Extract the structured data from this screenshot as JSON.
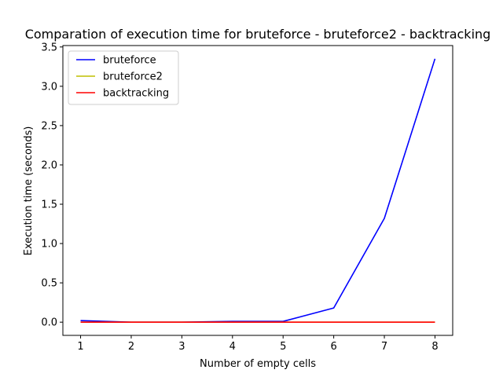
{
  "chart_data": {
    "type": "line",
    "title": "Comparation of execution time for bruteforce - bruteforce2 - backtracking",
    "xlabel": "Number of empty cells",
    "ylabel": "Execution time (seconds)",
    "x": [
      1,
      2,
      3,
      4,
      5,
      6,
      7,
      8
    ],
    "xticks": [
      "1",
      "2",
      "3",
      "4",
      "5",
      "6",
      "7",
      "8"
    ],
    "yticks": [
      "0.0",
      "0.5",
      "1.0",
      "1.5",
      "2.0",
      "2.5",
      "3.0",
      "3.5"
    ],
    "xlim": [
      0.65,
      8.35
    ],
    "ylim": [
      -0.168,
      3.518
    ],
    "grid": false,
    "legend_position": "top-left",
    "series": [
      {
        "name": "bruteforce",
        "color": "#0000ff",
        "values": [
          0.02,
          0.0,
          0.0,
          0.01,
          0.01,
          0.18,
          1.32,
          3.35
        ]
      },
      {
        "name": "bruteforce2",
        "color": "#bfbf00",
        "values": [
          0.0,
          0.0,
          0.0,
          0.0,
          0.0,
          0.0,
          0.0,
          0.0
        ]
      },
      {
        "name": "backtracking",
        "color": "#ff0000",
        "values": [
          0.0,
          0.0,
          0.0,
          0.0,
          0.0,
          0.0,
          0.0,
          0.0
        ]
      }
    ]
  }
}
